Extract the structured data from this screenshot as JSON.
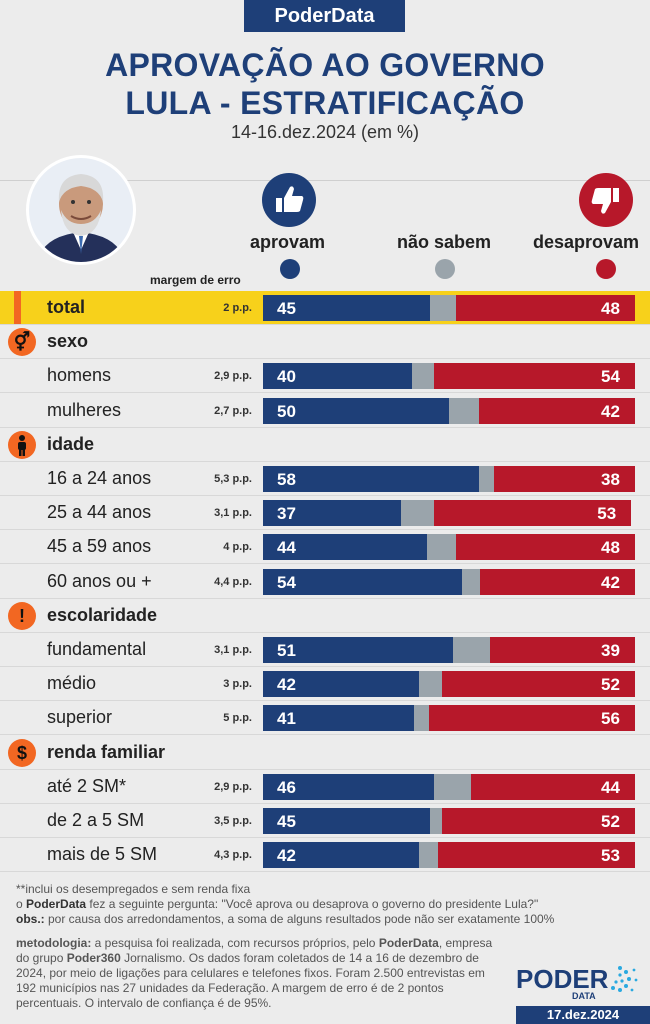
{
  "header": {
    "brand": "PoderData",
    "title_line1": "APROVAÇÃO AO GOVERNO",
    "title_line2": "LULA - ESTRATIFICAÇÃO",
    "subtitle": "14-16.dez.2024 (em %)"
  },
  "legend": {
    "approve": "aprovam",
    "dontknow": "não sabem",
    "disapprove": "desaprovam",
    "moe_header": "margem de erro"
  },
  "colors": {
    "approve": "#1e3f78",
    "dontknow": "#9aa4ab",
    "disapprove": "#b7182a",
    "highlight": "#f7d11b",
    "accent": "#f26722"
  },
  "chart_data": {
    "type": "bar",
    "title": "APROVAÇÃO AO GOVERNO LULA - ESTRATIFICAÇÃO",
    "subtitle": "14-16.dez.2024 (em %)",
    "stacked": true,
    "series_names": [
      "aprovam",
      "não sabem",
      "desaprovam"
    ],
    "rows": [
      {
        "kind": "total",
        "label": "total",
        "moe": "2 p.p.",
        "approve": 45,
        "dontknow": 7,
        "disapprove": 48
      },
      {
        "kind": "group",
        "label": "sexo",
        "icon": "gender-icon"
      },
      {
        "kind": "item",
        "label": "homens",
        "moe": "2,9 p.p.",
        "approve": 40,
        "dontknow": 6,
        "disapprove": 54
      },
      {
        "kind": "item",
        "label": "mulheres",
        "moe": "2,7 p.p.",
        "approve": 50,
        "dontknow": 8,
        "disapprove": 42
      },
      {
        "kind": "group",
        "label": "idade",
        "icon": "person-icon"
      },
      {
        "kind": "item",
        "label": "16 a 24 anos",
        "moe": "5,3 p.p.",
        "approve": 58,
        "dontknow": 4,
        "disapprove": 38
      },
      {
        "kind": "item",
        "label": "25 a 44 anos",
        "moe": "3,1 p.p.",
        "approve": 37,
        "dontknow": 9,
        "disapprove": 53
      },
      {
        "kind": "item",
        "label": "45 a 59 anos",
        "moe": "4 p.p.",
        "approve": 44,
        "dontknow": 8,
        "disapprove": 48
      },
      {
        "kind": "item",
        "label": "60 anos ou +",
        "moe": "4,4 p.p.",
        "approve": 54,
        "dontknow": 5,
        "disapprove": 42
      },
      {
        "kind": "group",
        "label": "escolaridade",
        "icon": "exclamation-icon"
      },
      {
        "kind": "item",
        "label": "fundamental",
        "moe": "3,1 p.p.",
        "approve": 51,
        "dontknow": 10,
        "disapprove": 39
      },
      {
        "kind": "item",
        "label": "médio",
        "moe": "3 p.p.",
        "approve": 42,
        "dontknow": 6,
        "disapprove": 52
      },
      {
        "kind": "item",
        "label": "superior",
        "moe": "5 p.p.",
        "approve": 41,
        "dontknow": 4,
        "disapprove": 56
      },
      {
        "kind": "group",
        "label": "renda familiar",
        "icon": "dollar-icon"
      },
      {
        "kind": "item",
        "label": "até 2 SM*",
        "moe": "2,9 p.p.",
        "approve": 46,
        "dontknow": 10,
        "disapprove": 44
      },
      {
        "kind": "item",
        "label": "de 2 a 5 SM",
        "moe": "3,5 p.p.",
        "approve": 45,
        "dontknow": 3,
        "disapprove": 52
      },
      {
        "kind": "item",
        "label": "mais de 5 SM",
        "moe": "4,3 p.p.",
        "approve": 42,
        "dontknow": 5,
        "disapprove": 53
      }
    ]
  },
  "footer": {
    "note_star": "**inclui os desempregados e sem renda fixa",
    "note_question_brand": "PoderData",
    "note_question_pre": "o ",
    "note_question_post": " fez a seguinte pergunta: \"Você aprova ou desaprova o governo do presidente Lula?\"",
    "obs_label": "obs.:",
    "obs_text": " por causa dos arredondamentos, a soma de alguns resultados pode não ser exatamente 100%",
    "method_label": "metodologia:",
    "method_text_1": " a pesquisa foi realizada, com recursos próprios, pelo ",
    "method_brand_1": "PoderData",
    "method_text_2": ", empresa do grupo ",
    "method_brand_2": "Poder360",
    "method_text_3": " Jornalismo. Os dados foram coletados de 14 a 16 de dezembro de 2024, por meio de ligações para celulares e telefones fixos. Foram 2.500 entrevistas em 192 municípios nas 27 unidades da Federação. A margem de erro é de 2 pontos percentuais. O intervalo de confiança é de 95%.",
    "logo_text": "PODER",
    "logo_sub": "DATA",
    "date": "17.dez.2024"
  }
}
